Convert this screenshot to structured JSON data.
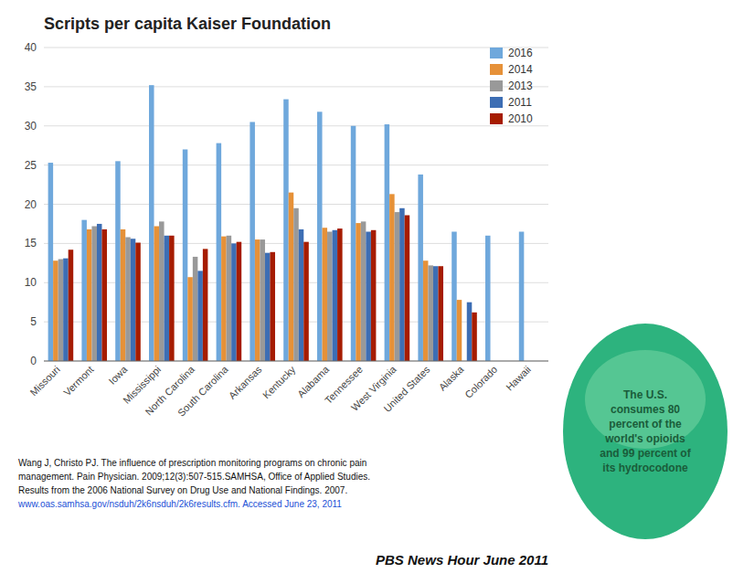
{
  "chart_data": {
    "type": "bar",
    "title": "Scripts per capita Kaiser Foundation",
    "categories": [
      "Missouri",
      "Vermont",
      "Iowa",
      "Mississippi",
      "North Carolina",
      "South Carolina",
      "Arkansas",
      "Kentucky",
      "Alabama",
      "Tennessee",
      "West Virginia",
      "United States",
      "Alaska",
      "Colorado",
      "Hawaii"
    ],
    "series": [
      {
        "name": "2016",
        "color": "#6fa8dc",
        "values": [
          25.3,
          18.0,
          25.5,
          35.2,
          27.0,
          27.8,
          30.5,
          33.4,
          31.8,
          30.0,
          30.2,
          23.8,
          16.5,
          16.0,
          16.5
        ]
      },
      {
        "name": "2014",
        "color": "#e69138",
        "values": [
          12.8,
          16.8,
          16.8,
          17.2,
          10.7,
          15.9,
          15.5,
          21.5,
          17.0,
          17.6,
          21.3,
          12.8,
          7.8,
          0,
          0
        ]
      },
      {
        "name": "2013",
        "color": "#999999",
        "values": [
          13.0,
          17.2,
          15.8,
          17.8,
          13.3,
          16.0,
          15.5,
          19.5,
          16.5,
          17.8,
          19.0,
          12.2,
          0,
          0,
          0
        ]
      },
      {
        "name": "2011",
        "color": "#3d6eb4",
        "values": [
          13.1,
          17.5,
          15.6,
          16.0,
          11.5,
          15.0,
          13.8,
          16.8,
          16.7,
          16.5,
          19.5,
          12.1,
          7.5,
          0,
          0
        ]
      },
      {
        "name": "2010",
        "color": "#a61c00",
        "values": [
          14.2,
          16.8,
          15.1,
          16.0,
          14.3,
          15.2,
          13.9,
          15.2,
          16.9,
          16.7,
          18.6,
          12.1,
          6.2,
          0,
          0
        ]
      }
    ],
    "ylim": [
      0,
      40
    ],
    "yticks": [
      0,
      5,
      10,
      15,
      20,
      25,
      30,
      35,
      40
    ],
    "grid": true,
    "legend": "upper right",
    "annotations": [
      "The U.S.\nconsumes 80\npercent of the\nworld's opioids\nand 99 percent of\nits hydrocodone",
      "Wang J, Christo PJ. The influence of prescription monitoring programs on chronic pain",
      "management. Pain Physician. 2009;12(3):507-515.SAMHSA, Office of Applied Studies.",
      "Results from the 2006 National Survey on Drug Use and National Findings. 2007.",
      "www.oas.samhsa.gov/nsduh/2k6nsduh/2k6results.cfm. Accessed June 23, 2011",
      "PBS News Hour June 2011"
    ]
  }
}
